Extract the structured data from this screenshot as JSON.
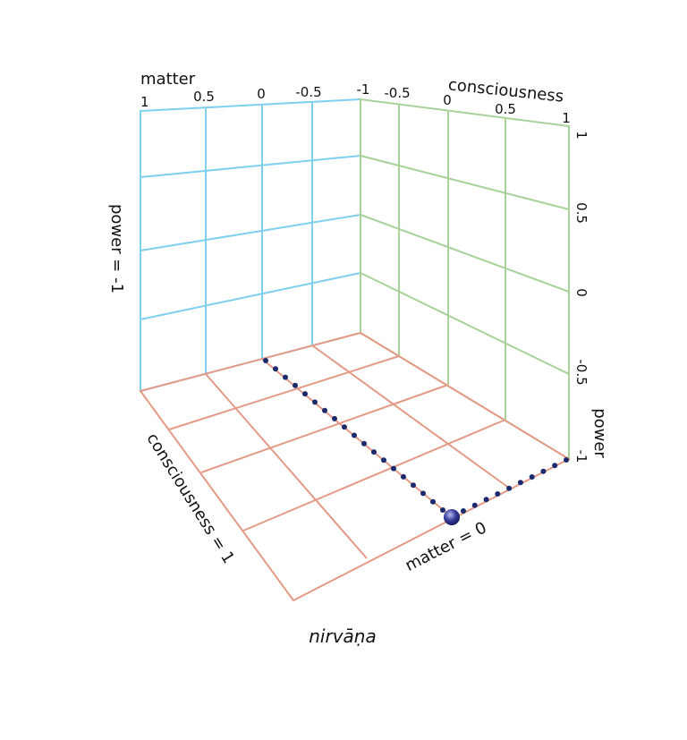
{
  "colors": {
    "back_wall": "#7fcfee",
    "side_wall": "#a8d29a",
    "floor": "#e39a86",
    "dots": "#1a2a6c",
    "sphere": "#3a3f9c"
  },
  "labels": {
    "matter_axis": "matter",
    "consciousness_axis": "consciousness",
    "power_axis": "power",
    "power_wall": "power = -1",
    "consciousness_edge": "consciousness = 1",
    "matter_edge": "matter = 0",
    "caption": "nirvāṇa"
  },
  "matter_ticks": [
    "1",
    "0.5",
    "0",
    "-0.5",
    "-1"
  ],
  "consciousness_ticks": [
    "-0.5",
    "0",
    "0.5",
    "1"
  ],
  "power_ticks": [
    "1",
    "0.5",
    "0",
    "-0.5",
    "-1"
  ]
}
